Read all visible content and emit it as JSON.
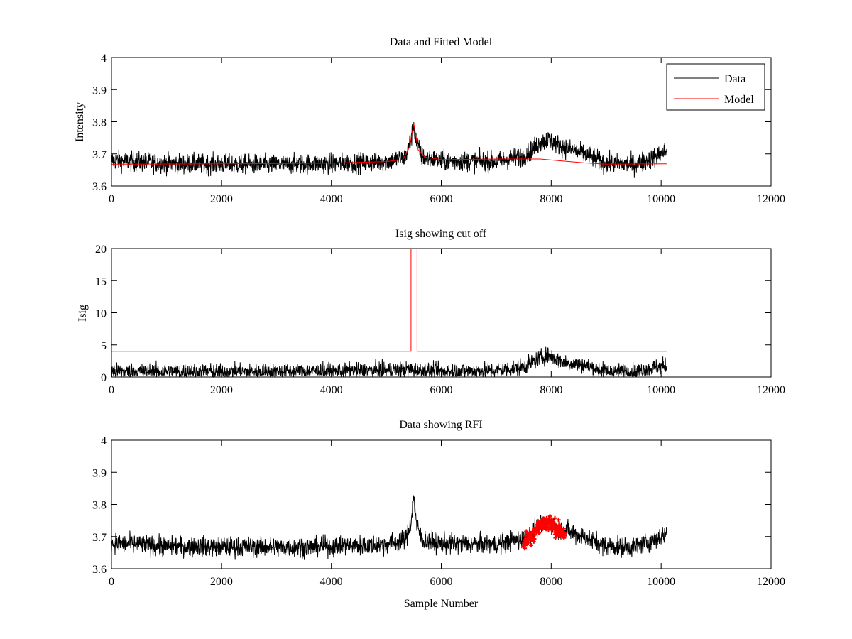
{
  "colors": {
    "data": "#000000",
    "model": "#ff0000",
    "axes": "#000000",
    "background": "#ffffff"
  },
  "chart_data": [
    {
      "type": "line",
      "title": "Data and Fitted Model",
      "xlabel": "",
      "ylabel": "Intensity",
      "xlim": [
        0,
        12000
      ],
      "ylim": [
        3.6,
        4.0
      ],
      "xticks": [
        0,
        2000,
        4000,
        6000,
        8000,
        10000,
        12000
      ],
      "xtick_labels": [
        "0",
        "2000",
        "4000",
        "6000",
        "8000",
        "10000",
        "12000"
      ],
      "yticks": [
        3.6,
        3.7,
        3.8,
        3.9,
        4.0
      ],
      "ytick_labels": [
        "3.6",
        "3.7",
        "3.8",
        "3.9",
        "4"
      ],
      "legend": {
        "location": "top-right",
        "entries": [
          "Data",
          "Model"
        ]
      },
      "series": [
        {
          "name": "Data",
          "color": "#000000",
          "noise": 0.022,
          "x": [
            0,
            1000,
            2000,
            3000,
            4000,
            5000,
            5350,
            5450,
            5500,
            5550,
            5650,
            6000,
            7000,
            7500,
            7800,
            7950,
            8200,
            8600,
            9000,
            9500,
            9800,
            10100
          ],
          "values": [
            3.68,
            3.67,
            3.668,
            3.667,
            3.67,
            3.676,
            3.69,
            3.745,
            3.79,
            3.735,
            3.69,
            3.678,
            3.676,
            3.693,
            3.735,
            3.745,
            3.722,
            3.7,
            3.67,
            3.668,
            3.683,
            3.71
          ]
        },
        {
          "name": "Model",
          "color": "#ff0000",
          "noise": 0,
          "x": [
            0,
            2000,
            4000,
            5000,
            5300,
            5420,
            5500,
            5580,
            5700,
            6000,
            7000,
            7800,
            8200,
            8600,
            9000,
            10100
          ],
          "values": [
            3.668,
            3.669,
            3.671,
            3.676,
            3.682,
            3.72,
            3.795,
            3.712,
            3.69,
            3.682,
            3.684,
            3.684,
            3.678,
            3.672,
            3.668,
            3.669
          ]
        }
      ]
    },
    {
      "type": "line",
      "title": "Isig showing cut off",
      "xlabel": "",
      "ylabel": "Isig",
      "xlim": [
        0,
        12000
      ],
      "ylim": [
        0,
        20
      ],
      "xticks": [
        0,
        2000,
        4000,
        6000,
        8000,
        10000,
        12000
      ],
      "xtick_labels": [
        "0",
        "2000",
        "4000",
        "6000",
        "8000",
        "10000",
        "12000"
      ],
      "yticks": [
        0,
        5,
        10,
        15,
        20
      ],
      "ytick_labels": [
        "0",
        "5",
        "10",
        "15",
        "20"
      ],
      "series": [
        {
          "name": "Isig",
          "color": "#000000",
          "noise": 0.9,
          "floor": 0,
          "x": [
            0,
            2000,
            4000,
            5000,
            5400,
            5600,
            6000,
            7000,
            7500,
            7800,
            7950,
            8200,
            8600,
            9000,
            9500,
            10100
          ],
          "values": [
            0.9,
            0.8,
            0.9,
            1.0,
            1.2,
            1.0,
            0.9,
            1.0,
            1.6,
            3.0,
            3.4,
            2.4,
            1.8,
            0.9,
            0.8,
            1.8
          ]
        },
        {
          "name": "Cut off",
          "color": "#ff0000",
          "noise": 0,
          "step": true,
          "x": [
            0,
            5450,
            5450,
            5560,
            5560,
            10100
          ],
          "values": [
            4,
            4,
            20,
            20,
            4,
            4
          ]
        }
      ]
    },
    {
      "type": "line",
      "title": "Data showing RFI",
      "xlabel": "Sample Number",
      "ylabel": "",
      "xlim": [
        0,
        12000
      ],
      "ylim": [
        3.6,
        4.0
      ],
      "xticks": [
        0,
        2000,
        4000,
        6000,
        8000,
        10000,
        12000
      ],
      "xtick_labels": [
        "0",
        "2000",
        "4000",
        "6000",
        "8000",
        "10000",
        "12000"
      ],
      "yticks": [
        3.6,
        3.7,
        3.8,
        3.9,
        4.0
      ],
      "ytick_labels": [
        "3.6",
        "3.7",
        "3.8",
        "3.9",
        "4"
      ],
      "series": [
        {
          "name": "Data",
          "color": "#000000",
          "noise": 0.022,
          "x": [
            0,
            1000,
            2000,
            3000,
            4000,
            5000,
            5350,
            5450,
            5500,
            5550,
            5650,
            6000,
            7000,
            7500,
            7800,
            7950,
            8200,
            8600,
            9000,
            9500,
            9800,
            10100
          ],
          "values": [
            3.68,
            3.67,
            3.668,
            3.667,
            3.67,
            3.676,
            3.69,
            3.745,
            3.83,
            3.735,
            3.69,
            3.678,
            3.676,
            3.693,
            3.735,
            3.745,
            3.722,
            3.7,
            3.67,
            3.668,
            3.683,
            3.71
          ]
        }
      ],
      "rfi_markers": {
        "name": "RFI",
        "color": "#ff0000",
        "marker": "+",
        "noise": 0.018,
        "x": [
          7500,
          7650,
          7800,
          7900,
          8000,
          8100,
          8200,
          8250
        ],
        "values": [
          3.683,
          3.705,
          3.735,
          3.745,
          3.738,
          3.725,
          3.715,
          3.71
        ]
      }
    }
  ]
}
